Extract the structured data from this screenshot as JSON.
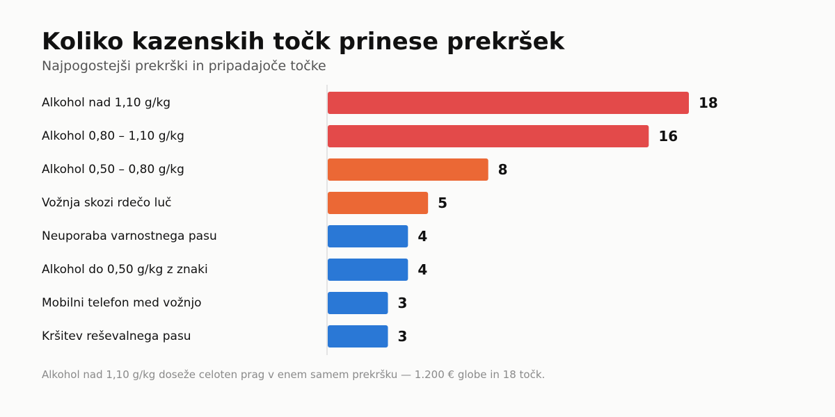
{
  "title": "Koliko kazenskih točk prinese prekršek",
  "subtitle": "Najpogostejši prekrški in pripadajoče točke",
  "footnote": "Alkohol nad 1,10 g/kg doseže celoten prag v enem samem prekršku — 1.200 € globe in 18 točk.",
  "colors": {
    "severe": "#e34a4a",
    "medium": "#eb6835",
    "low": "#2a78d6",
    "axis_line": "#dcdcdc",
    "label_text": "#111111",
    "value_text": "#111111"
  },
  "chart_data": {
    "type": "bar",
    "orientation": "horizontal",
    "title": "Koliko kazenskih točk prinese prekršek",
    "subtitle": "Najpogostejši prekrški in pripadajoče točke",
    "xlabel": "",
    "ylabel": "",
    "xlim": [
      0,
      18
    ],
    "grid": false,
    "legend": "none",
    "categories": [
      "Alkohol nad 1,10 g/kg",
      "Alkohol 0,80 – 1,10 g/kg",
      "Alkohol 0,50 – 0,80 g/kg",
      "Vožnja skozi rdečo luč",
      "Neuporaba varnostnega pasu",
      "Alkohol do 0,50 g/kg z znaki",
      "Mobilni telefon med vožnjo",
      "Kršitev reševalnega pasu"
    ],
    "values": [
      18,
      16,
      8,
      5,
      4,
      4,
      3,
      3
    ],
    "bar_colors": [
      "#e34a4a",
      "#e34a4a",
      "#eb6835",
      "#eb6835",
      "#2a78d6",
      "#2a78d6",
      "#2a78d6",
      "#2a78d6"
    ]
  }
}
